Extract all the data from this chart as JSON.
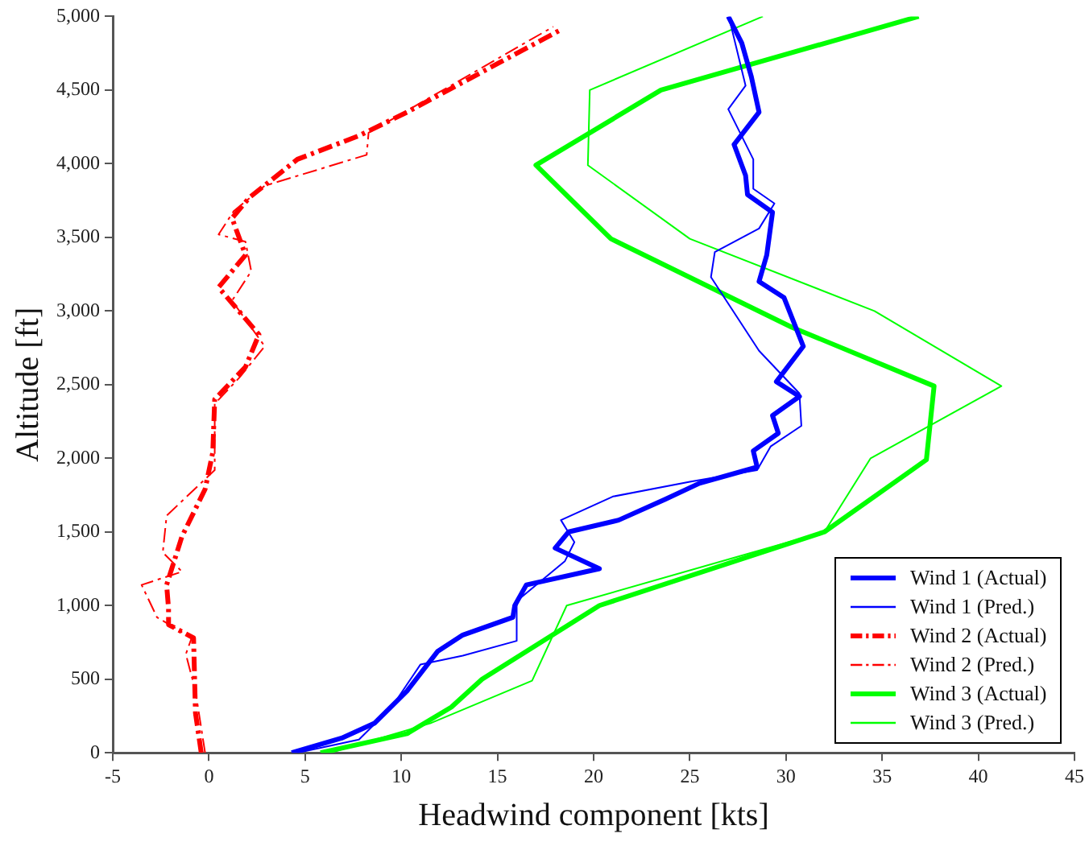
{
  "chart_data": {
    "type": "line",
    "xlabel": "Headwind component [kts]",
    "ylabel": "Altitude [ft]",
    "xlim": [
      -5,
      45
    ],
    "xticks": [
      -5,
      0,
      5,
      10,
      15,
      20,
      25,
      30,
      35,
      40,
      45
    ],
    "ylim": [
      0,
      5000
    ],
    "yticks": [
      {
        "value": 0,
        "label": "0"
      },
      {
        "value": 500,
        "label": "500"
      },
      {
        "value": 1000,
        "label": "1,000"
      },
      {
        "value": 1500,
        "label": "1,500"
      },
      {
        "value": 2000,
        "label": "2,000"
      },
      {
        "value": 2500,
        "label": "2,500"
      },
      {
        "value": 3000,
        "label": "3,000"
      },
      {
        "value": 3500,
        "label": "3,500"
      },
      {
        "value": 4000,
        "label": "4,000"
      },
      {
        "value": 4500,
        "label": "4,500"
      },
      {
        "value": 5000,
        "label": "5,000"
      }
    ],
    "grid": false,
    "legend": "bottom right",
    "marker": "none",
    "series": [
      {
        "name": "Wind 1 (Actual)",
        "color": "#0000ff",
        "line_style": "solid",
        "x": [
          4.3,
          6.9,
          8.6,
          10.3,
          11.9,
          13.2,
          15.8,
          15.9,
          16.5,
          20.3,
          18.0,
          18.7,
          21.3,
          23.7,
          25.5,
          28.5,
          28.3,
          29.6,
          29.3,
          30.7,
          29.5,
          30.9,
          29.9,
          28.6,
          29.0,
          29.3,
          28.0,
          27.9,
          27.3,
          28.6,
          28.2,
          27.7,
          27.0
        ],
        "values": [
          0,
          100,
          200,
          420,
          690,
          800,
          920,
          1000,
          1140,
          1250,
          1390,
          1500,
          1580,
          1720,
          1830,
          1940,
          2050,
          2170,
          2290,
          2420,
          2520,
          2760,
          3090,
          3200,
          3380,
          3670,
          3790,
          3920,
          4130,
          4350,
          4590,
          4820,
          5000
        ]
      },
      {
        "name": "Wind 1 (Pred.)",
        "color": "#0000ff",
        "line_style": "solid",
        "x": [
          4.6,
          7.8,
          9.5,
          11.0,
          13.2,
          16.0,
          16.0,
          18.5,
          19.0,
          18.3,
          21.0,
          25.0,
          28.5,
          29.2,
          30.8,
          30.7,
          28.6,
          26.1,
          26.3,
          28.6,
          29.4,
          28.3,
          28.3,
          27.0,
          27.9,
          27.1
        ],
        "values": [
          0,
          90,
          310,
          600,
          660,
          760,
          1030,
          1300,
          1430,
          1580,
          1740,
          1840,
          1920,
          2080,
          2220,
          2440,
          2730,
          3230,
          3400,
          3560,
          3730,
          3830,
          4030,
          4370,
          4530,
          4960
        ]
      },
      {
        "name": "Wind 2 (Actual)",
        "color": "#ff0000",
        "line_style": "dashed",
        "x": [
          -0.4,
          -0.7,
          -0.8,
          -2.1,
          -2.1,
          -2.2,
          -1.4,
          -0.2,
          0.2,
          0.3,
          1.9,
          2.6,
          0.5,
          1.9,
          1.2,
          2.1,
          4.6,
          7.8,
          10.3,
          18.3
        ],
        "values": [
          0,
          270,
          780,
          870,
          980,
          1140,
          1470,
          1790,
          2040,
          2400,
          2620,
          2840,
          3160,
          3380,
          3630,
          3770,
          4030,
          4190,
          4350,
          4910
        ]
      },
      {
        "name": "Wind 2 (Pred.)",
        "color": "#ff0000",
        "line_style": "dashed",
        "x": [
          -0.2,
          -0.7,
          -1.2,
          -0.9,
          -2.7,
          -3.5,
          -1.4,
          -2.4,
          -2.2,
          0.3,
          0.3,
          1.6,
          2.9,
          1.2,
          2.2,
          1.9,
          0.5,
          1.3,
          2.9,
          8.2,
          8.3,
          17.9
        ],
        "values": [
          0,
          420,
          670,
          780,
          920,
          1140,
          1230,
          1360,
          1610,
          1920,
          2370,
          2550,
          2760,
          3070,
          3270,
          3470,
          3520,
          3680,
          3850,
          4060,
          4210,
          4930
        ]
      },
      {
        "name": "Wind 3 (Actual)",
        "color": "#00ff00",
        "line_style": "solid",
        "x": [
          5.8,
          10.3,
          12.6,
          14.2,
          20.3,
          32.0,
          37.3,
          37.7,
          30.3,
          20.9,
          17.0,
          23.5,
          36.9
        ],
        "values": [
          0,
          130,
          310,
          500,
          1000,
          1500,
          1990,
          2490,
          2890,
          3490,
          3990,
          4500,
          5000
        ]
      },
      {
        "name": "Wind 3 (Pred.)",
        "color": "#00ff00",
        "line_style": "solid",
        "x": [
          6.3,
          11.5,
          16.8,
          18.6,
          32.0,
          34.4,
          41.2,
          34.6,
          25.0,
          19.7,
          19.8,
          28.8
        ],
        "values": [
          0,
          200,
          490,
          1000,
          1500,
          2000,
          2490,
          3000,
          3490,
          3990,
          4500,
          5000
        ]
      }
    ]
  }
}
